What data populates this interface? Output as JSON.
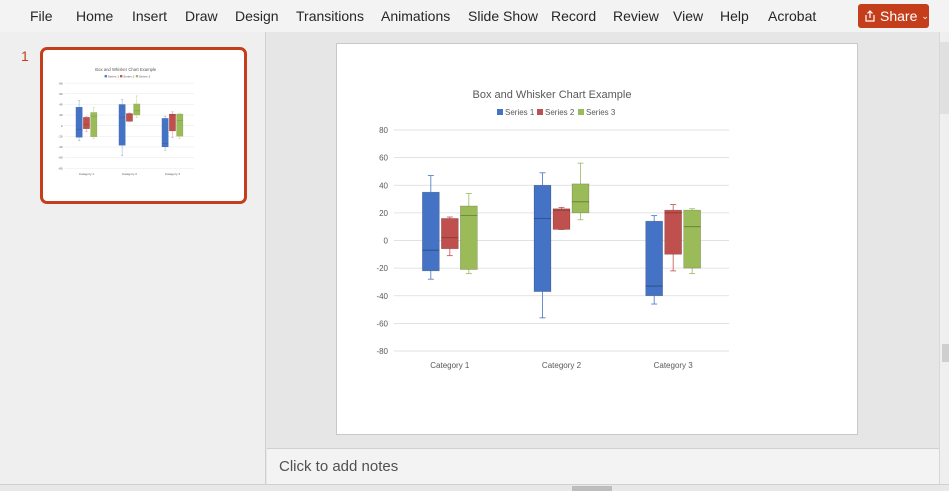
{
  "menu": {
    "items": [
      "File",
      "Home",
      "Insert",
      "Draw",
      "Design",
      "Transitions",
      "Animations",
      "Slide Show",
      "Record",
      "Review",
      "View",
      "Help",
      "Acrobat"
    ],
    "share_label": "Share"
  },
  "thumbnails": {
    "slide_number": "1"
  },
  "notes": {
    "placeholder": "Click to add notes"
  },
  "colors": {
    "accent": "#c43e1c",
    "series1": "#4472c4",
    "series2": "#c0504d",
    "series3": "#9bbb59"
  },
  "icons": [
    "share-icon",
    "chevron-down-icon"
  ],
  "chart_data": {
    "type": "box",
    "title": "Box and Whisker Chart Example",
    "categories": [
      "Category 1",
      "Category 2",
      "Category 3"
    ],
    "ylim": [
      -80,
      80
    ],
    "yticks": [
      80,
      60,
      40,
      20,
      0,
      -20,
      -40,
      -60,
      -80
    ],
    "grid": true,
    "legend_position": "top",
    "series": [
      {
        "name": "Series 1",
        "boxes": [
          {
            "min": -28,
            "q1": -22,
            "median": -7,
            "q3": 35,
            "max": 47
          },
          {
            "min": -56,
            "q1": -37,
            "median": 16,
            "q3": 40,
            "max": 49
          },
          {
            "min": -46,
            "q1": -40,
            "median": -33,
            "q3": 14,
            "max": 18
          }
        ]
      },
      {
        "name": "Series 2",
        "boxes": [
          {
            "min": -11,
            "q1": -6,
            "median": 2,
            "q3": 16,
            "max": 17
          },
          {
            "min": 8,
            "q1": 8,
            "median": 22,
            "q3": 23,
            "max": 24
          },
          {
            "min": -22,
            "q1": -10,
            "median": 20,
            "q3": 22,
            "max": 26
          }
        ]
      },
      {
        "name": "Series 3",
        "boxes": [
          {
            "min": -24,
            "q1": -21,
            "median": 18,
            "q3": 25,
            "max": 34
          },
          {
            "min": 15,
            "q1": 20,
            "median": 28,
            "q3": 41,
            "max": 56
          },
          {
            "min": -24,
            "q1": -20,
            "median": 10,
            "q3": 22,
            "max": 23
          }
        ]
      }
    ]
  }
}
